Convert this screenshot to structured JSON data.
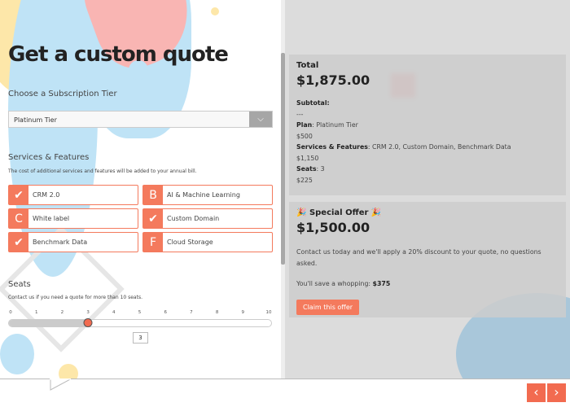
{
  "title": "Get a custom quote",
  "tier": {
    "label": "Choose a Subscription Tier",
    "selected": "Platinum Tier",
    "icon": "chevron-down-icon"
  },
  "features": {
    "heading": "Services & Features",
    "note": "The cost of additional services and features will be added to your annual bill.",
    "items": [
      {
        "label": "CRM 2.0",
        "selected": true,
        "letter": "A"
      },
      {
        "label": "AI & Machine Learning",
        "selected": false,
        "letter": "B"
      },
      {
        "label": "White label",
        "selected": false,
        "letter": "C"
      },
      {
        "label": "Custom Domain",
        "selected": true,
        "letter": "D"
      },
      {
        "label": "Benchmark Data",
        "selected": true,
        "letter": "E"
      },
      {
        "label": "Cloud Storage",
        "selected": false,
        "letter": "F"
      }
    ]
  },
  "seats": {
    "heading": "Seats",
    "note": "Contact us if you need a quote for more than 10 seats.",
    "ticks": [
      "0",
      "1",
      "2",
      "3",
      "4",
      "5",
      "6",
      "7",
      "8",
      "9",
      "10"
    ],
    "min": 0,
    "max": 10,
    "value": 3,
    "value_label": "3"
  },
  "summary": {
    "total_label": "Total",
    "total": "$1,875.00",
    "subtotal_label": "Subtotal:",
    "sep": "---",
    "plan_label": "Plan",
    "plan": "Platinum Tier",
    "plan_price": "$500",
    "services_label": "Services & Features",
    "services": "CRM 2.0, Custom Domain, Benchmark Data",
    "services_price": "$1,150",
    "seats_label": "Seats",
    "seats": "3",
    "seats_price": "$225"
  },
  "offer": {
    "title": "Special Offer",
    "emoji": "🎉",
    "price": "$1,500.00",
    "text": "Contact us today and we'll apply a 20% discount to your quote, no questions asked.",
    "save_label": "You'll save a whopping:",
    "save": "$375",
    "button": "Claim this offer"
  },
  "nav": {
    "prev": "‹",
    "next": "›"
  },
  "colors": {
    "accent": "#f47a5d",
    "nav": "#f26b50"
  }
}
